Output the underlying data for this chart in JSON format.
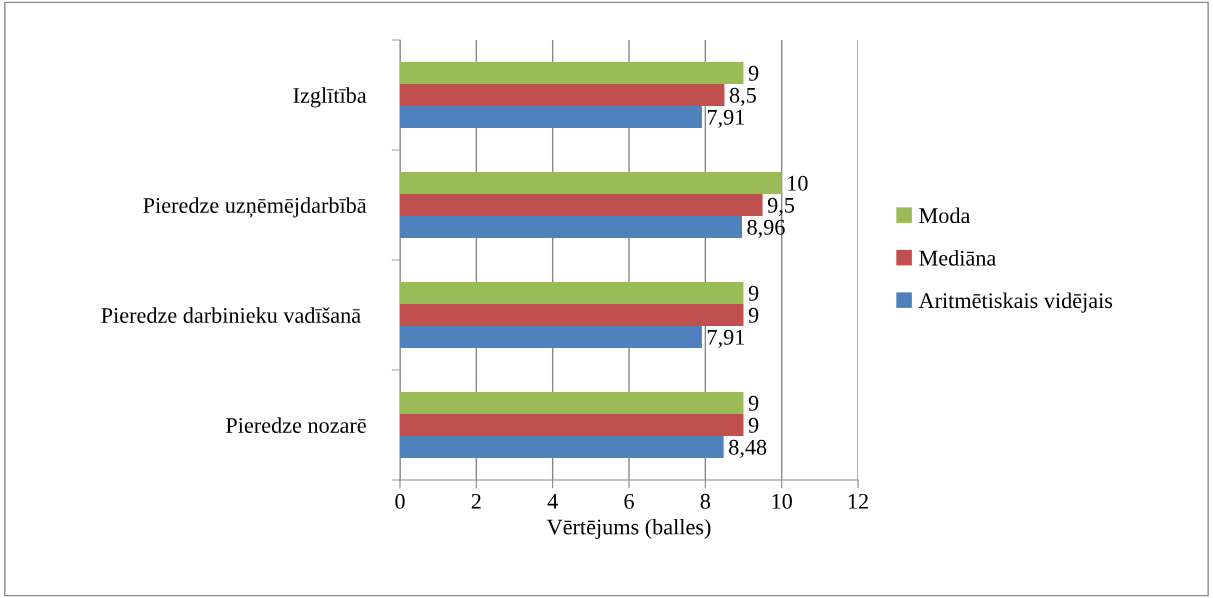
{
  "chart_data": {
    "type": "bar",
    "orientation": "horizontal",
    "categories": [
      "Izglītība",
      "Pieredze uzņēmējdarbībā",
      "Pieredze darbinieku vadīšanā ",
      "Pieredze nozarē"
    ],
    "series": [
      {
        "name": "Moda",
        "color": "#9bbb59",
        "values": [
          9,
          10,
          9,
          9
        ],
        "value_labels": [
          "9",
          "10",
          "9",
          "9"
        ]
      },
      {
        "name": "Mediāna",
        "color": "#c0504d",
        "values": [
          8.5,
          9.5,
          9,
          9
        ],
        "value_labels": [
          "8,5",
          "9,5",
          "9",
          "9"
        ]
      },
      {
        "name": "Aritmētiskais vidējais",
        "color": "#4f81bd",
        "values": [
          7.91,
          8.96,
          7.91,
          8.48
        ],
        "value_labels": [
          "7,91",
          "8,96",
          "7,91",
          "8,48"
        ]
      }
    ],
    "xlabel": "Vērtējums (balles)",
    "xlim": [
      0,
      12
    ],
    "xticks": [
      0,
      2,
      4,
      6,
      8,
      10,
      12
    ],
    "grid": "x",
    "legend": "right"
  }
}
